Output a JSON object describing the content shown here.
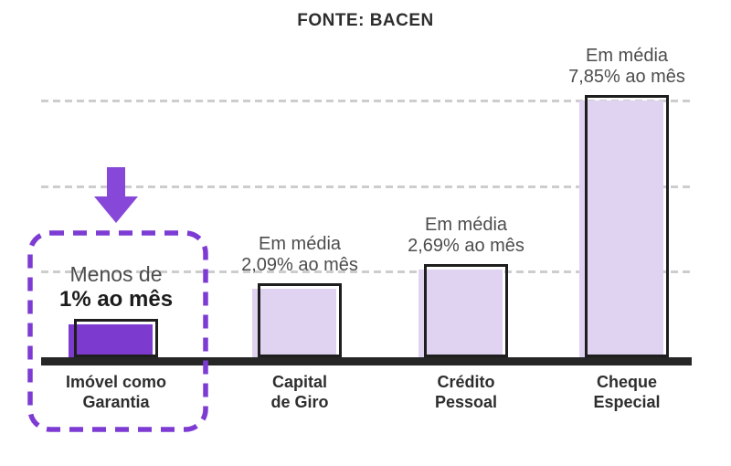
{
  "title": "FONTE: BACEN",
  "bars": [
    {
      "label1": "Imóvel como",
      "label2": "Garantia",
      "note1": "Menos de",
      "note2": "1% ao mês",
      "value": 1.0,
      "highlighted": true
    },
    {
      "label1": "Capital",
      "label2": "de Giro",
      "note1": "Em média",
      "note2": "2,09% ao mês",
      "value": 2.09,
      "highlighted": false
    },
    {
      "label1": "Crédito",
      "label2": "Pessoal",
      "note1": "Em média",
      "note2": "2,69% ao mês",
      "value": 2.69,
      "highlighted": false
    },
    {
      "label1": "Cheque",
      "label2": "Especial",
      "note1": "Em média",
      "note2": "7,85% ao mês",
      "value": 7.85,
      "highlighted": false
    }
  ],
  "chart_data": {
    "type": "bar",
    "title": "FONTE: BACEN",
    "categories": [
      "Imóvel como Garantia",
      "Capital de Giro",
      "Crédito Pessoal",
      "Cheque Especial"
    ],
    "values": [
      1.0,
      2.09,
      2.69,
      7.85
    ],
    "value_labels": [
      "Menos de 1% ao mês",
      "Em média 2,09% ao mês",
      "Em média 2,69% ao mês",
      "Em média 7,85% ao mês"
    ],
    "unit": "% ao mês",
    "xlabel": "",
    "ylabel": "",
    "ylim": [
      0,
      8.5
    ],
    "grid": "horizontal-dashed",
    "gridline_levels": [
      2.62,
      5.23,
      7.85
    ],
    "legend": "none",
    "highlighted_category": "Imóvel como Garantia",
    "annotations": [
      "down-arrow over highlighted bar",
      "purple dashed rounded box around highlighted bar"
    ]
  },
  "colors": {
    "highlight_purple": "#7c3ace",
    "arrow_purple": "#8747d8",
    "dash_purple": "#7d3bd4",
    "light_purple": "#e0d3f1",
    "outline_black": "#1e1e1e",
    "axis_black": "#262626",
    "gridline_gray": "#cdcdcd",
    "text_dark": "#2e2e2e",
    "text_gray": "#4d4d4d"
  },
  "icons": {
    "down_arrow": "solid purple arrow pointing down at highlighted bar"
  }
}
